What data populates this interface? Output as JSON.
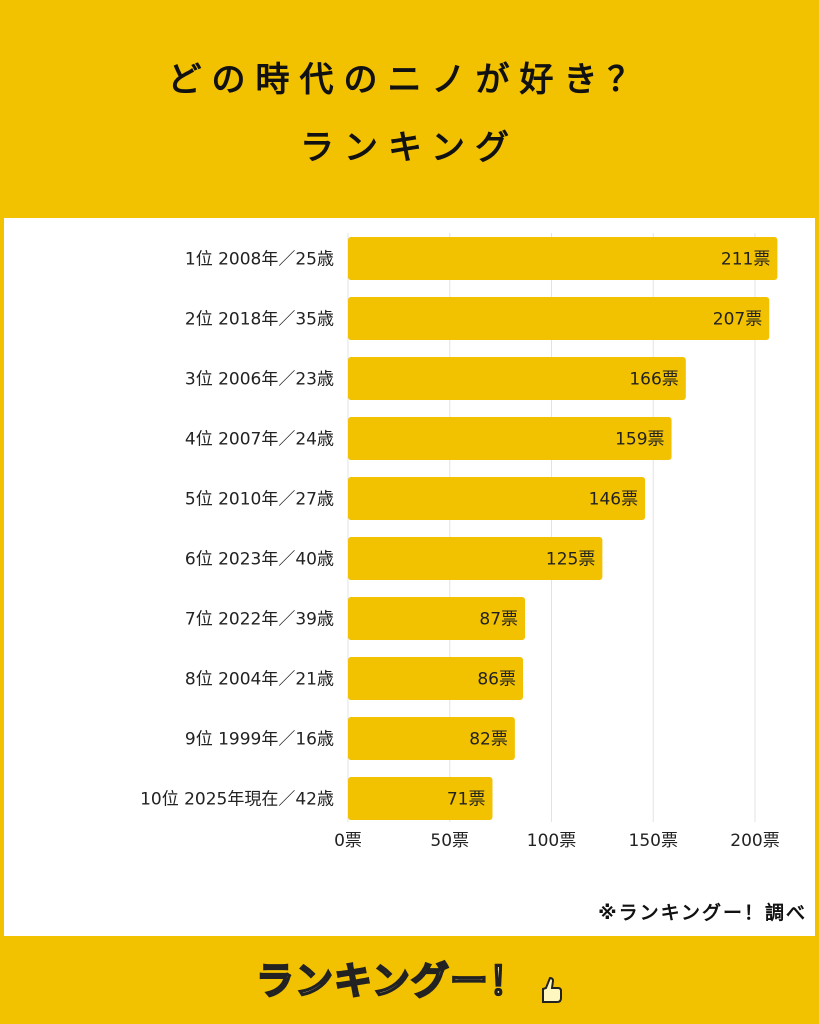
{
  "header": {
    "title_line1": "どの時代のニノが好き？",
    "title_line2": "ランキング"
  },
  "footer": {
    "source": "※ランキングー！調べ",
    "logo_text": "ランキングー！"
  },
  "colors": {
    "background": "#f2c100",
    "bar": "#f2c100",
    "panel": "#ffffff",
    "grid": "#e3e3e3"
  },
  "chart_data": {
    "type": "bar",
    "orientation": "horizontal",
    "title": "どの時代のニノが好き？ランキング",
    "categories": [
      "1位 2008年／25歳",
      "2位 2018年／35歳",
      "3位 2006年／23歳",
      "4位 2007年／24歳",
      "5位 2010年／27歳",
      "6位 2023年／40歳",
      "7位 2022年／39歳",
      "8位 2004年／21歳",
      "9位 1999年／16歳",
      "10位 2025年現在／42歳"
    ],
    "values": [
      211,
      207,
      166,
      159,
      146,
      125,
      87,
      86,
      82,
      71
    ],
    "value_labels": [
      "211票",
      "207票",
      "166票",
      "159票",
      "146票",
      "125票",
      "87票",
      "86票",
      "82票",
      "71票"
    ],
    "xlim": [
      0,
      200
    ],
    "xticks": [
      0,
      50,
      100,
      150,
      200
    ],
    "xtick_labels": [
      "0票",
      "50票",
      "100票",
      "150票",
      "200票"
    ],
    "grid": true
  }
}
